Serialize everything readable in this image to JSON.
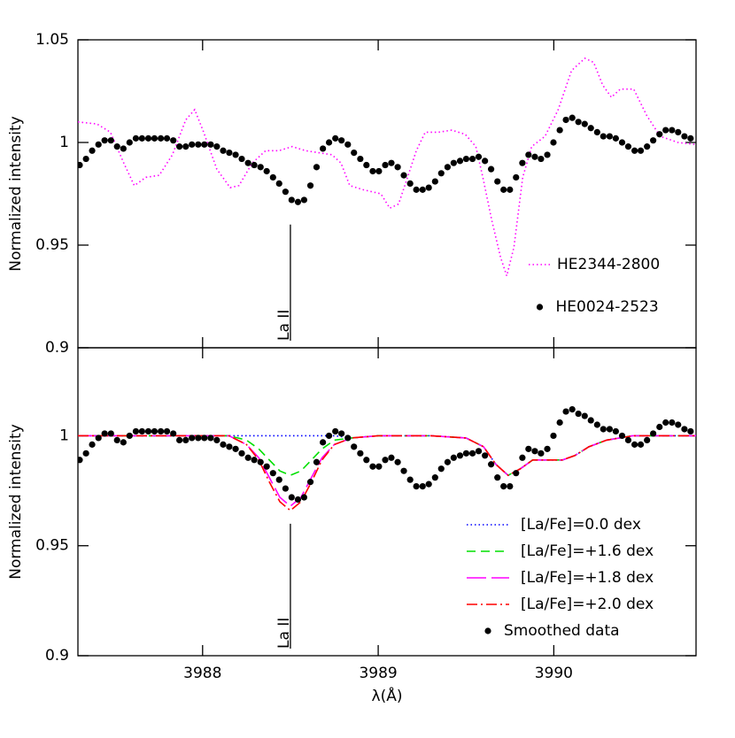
{
  "chart_data": [
    {
      "type": "line",
      "ylabel": "Normalized intensity",
      "xlim": [
        3987.29,
        3990.81
      ],
      "ylim": [
        0.9,
        1.05
      ],
      "xticks": [
        3988,
        3989,
        3990
      ],
      "xtick_labels_shown": false,
      "yticks": [
        0.9,
        0.95,
        1,
        1.05
      ],
      "grid": false,
      "legend": "lower right",
      "series": [
        {
          "name": "HE2344-2800",
          "color": "#ff00ff",
          "style": "dotted",
          "x": [
            3987.29,
            3987.399,
            3987.475,
            3987.551,
            3987.611,
            3987.677,
            3987.753,
            3987.828,
            3987.904,
            3987.955,
            3988.006,
            3988.081,
            3988.157,
            3988.207,
            3988.283,
            3988.359,
            3988.435,
            3988.51,
            3988.586,
            3988.662,
            3988.737,
            3988.788,
            3988.838,
            3988.914,
            3989.015,
            3989.066,
            3989.116,
            3989.167,
            3989.217,
            3989.268,
            3989.343,
            3989.419,
            3989.495,
            3989.556,
            3989.596,
            3989.647,
            3989.697,
            3989.732,
            3989.773,
            3989.823,
            3989.874,
            3989.95,
            3990.025,
            3990.101,
            3990.177,
            3990.227,
            3990.278,
            3990.328,
            3990.379,
            3990.455,
            3990.53,
            3990.606,
            3990.707,
            3990.81
          ],
          "values": [
            1.01,
            1.009,
            1.005,
            0.99,
            0.979,
            0.983,
            0.984,
            0.994,
            1.011,
            1.016,
            1.005,
            0.987,
            0.978,
            0.979,
            0.99,
            0.996,
            0.996,
            0.998,
            0.996,
            0.995,
            0.994,
            0.99,
            0.979,
            0.977,
            0.975,
            0.968,
            0.97,
            0.983,
            0.996,
            1.005,
            1.005,
            1.006,
            1.004,
            0.998,
            0.983,
            0.962,
            0.944,
            0.935,
            0.949,
            0.983,
            0.998,
            1.003,
            1.016,
            1.035,
            1.041,
            1.039,
            1.028,
            1.022,
            1.026,
            1.026,
            1.013,
            1.003,
            1.0,
            0.999
          ]
        },
        {
          "name": "HE0024-2523",
          "color": "#000000",
          "style": "dots",
          "x": [
            3987.3,
            3987.336,
            3987.371,
            3987.407,
            3987.442,
            3987.478,
            3987.513,
            3987.549,
            3987.584,
            3987.62,
            3987.655,
            3987.691,
            3987.726,
            3987.762,
            3987.797,
            3987.833,
            3987.868,
            3987.904,
            3987.939,
            3987.975,
            3988.01,
            3988.046,
            3988.081,
            3988.117,
            3988.152,
            3988.188,
            3988.223,
            3988.259,
            3988.294,
            3988.33,
            3988.365,
            3988.401,
            3988.436,
            3988.472,
            3988.507,
            3988.543,
            3988.578,
            3988.614,
            3988.649,
            3988.685,
            3988.72,
            3988.756,
            3988.791,
            3988.827,
            3988.862,
            3988.898,
            3988.933,
            3988.969,
            3989.004,
            3989.04,
            3989.075,
            3989.111,
            3989.146,
            3989.182,
            3989.217,
            3989.253,
            3989.288,
            3989.324,
            3989.359,
            3989.395,
            3989.43,
            3989.466,
            3989.501,
            3989.537,
            3989.572,
            3989.608,
            3989.643,
            3989.679,
            3989.714,
            3989.75,
            3989.785,
            3989.821,
            3989.856,
            3989.892,
            3989.927,
            3989.963,
            3989.998,
            3990.034,
            3990.069,
            3990.105,
            3990.14,
            3990.176,
            3990.211,
            3990.247,
            3990.282,
            3990.318,
            3990.353,
            3990.389,
            3990.424,
            3990.46,
            3990.495,
            3990.531,
            3990.566,
            3990.602,
            3990.637,
            3990.673,
            3990.708,
            3990.744,
            3990.779
          ],
          "values": [
            0.989,
            0.992,
            0.996,
            0.999,
            1.001,
            1.001,
            0.998,
            0.997,
            1.0,
            1.002,
            1.002,
            1.002,
            1.002,
            1.002,
            1.002,
            1.001,
            0.998,
            0.998,
            0.999,
            0.999,
            0.999,
            0.999,
            0.998,
            0.996,
            0.995,
            0.994,
            0.992,
            0.99,
            0.989,
            0.988,
            0.986,
            0.983,
            0.98,
            0.976,
            0.972,
            0.971,
            0.972,
            0.979,
            0.988,
            0.997,
            1.0,
            1.002,
            1.001,
            0.999,
            0.995,
            0.992,
            0.989,
            0.986,
            0.986,
            0.989,
            0.99,
            0.988,
            0.984,
            0.98,
            0.977,
            0.977,
            0.978,
            0.981,
            0.985,
            0.988,
            0.99,
            0.991,
            0.992,
            0.992,
            0.993,
            0.991,
            0.987,
            0.981,
            0.977,
            0.977,
            0.983,
            0.99,
            0.994,
            0.993,
            0.992,
            0.994,
            1.0,
            1.006,
            1.011,
            1.012,
            1.01,
            1.009,
            1.007,
            1.005,
            1.003,
            1.003,
            1.002,
            1.0,
            0.998,
            0.996,
            0.996,
            0.998,
            1.001,
            1.004,
            1.006,
            1.006,
            1.005,
            1.003,
            1.002
          ]
        }
      ],
      "annotations": [
        {
          "text": "La II",
          "x": 3988.5,
          "y": 0.96
        }
      ]
    },
    {
      "type": "line",
      "ylabel": "Normalized intensity",
      "xlabel": "λ(Å)",
      "xlim": [
        3987.29,
        3990.81
      ],
      "ylim": [
        0.9,
        1.04
      ],
      "xticks": [
        3988,
        3989,
        3990
      ],
      "xtick_labels_shown": true,
      "yticks": [
        0.9,
        0.95,
        1
      ],
      "grid": false,
      "legend": "lower right",
      "series": [
        {
          "name": "[La/Fe]=0.0 dex",
          "color": "#0000ff",
          "style": "dotted",
          "x": [
            3987.29,
            3987.8,
            3988.0,
            3988.15,
            3988.25,
            3988.32,
            3988.38,
            3988.44,
            3988.5,
            3988.56,
            3988.62,
            3988.68,
            3988.75,
            3988.85,
            3989.0,
            3989.3,
            3989.5,
            3989.6,
            3989.67,
            3989.74,
            3989.81,
            3989.88,
            3989.95,
            3990.05,
            3990.12,
            3990.2,
            3990.3,
            3990.45,
            3990.81
          ],
          "values": [
            1.0,
            1.0,
            1.0,
            1.0,
            1.0,
            1.0,
            1.0,
            1.0,
            1.0,
            1.0,
            1.0,
            1.0,
            1.0,
            0.999,
            1.0,
            1.0,
            0.999,
            0.995,
            0.987,
            0.982,
            0.985,
            0.989,
            0.989,
            0.989,
            0.991,
            0.995,
            0.998,
            1.0,
            1.0
          ]
        },
        {
          "name": "[La/Fe]=+1.6 dex",
          "color": "#00e000",
          "style": "dashed",
          "x": [
            3987.29,
            3987.8,
            3988.0,
            3988.15,
            3988.25,
            3988.32,
            3988.38,
            3988.44,
            3988.5,
            3988.56,
            3988.62,
            3988.68,
            3988.75,
            3988.85,
            3989.0,
            3989.3,
            3989.5,
            3989.6,
            3989.67,
            3989.74,
            3989.81,
            3989.88,
            3989.95,
            3990.05,
            3990.12,
            3990.2,
            3990.3,
            3990.45,
            3990.81
          ],
          "values": [
            1.0,
            1.0,
            1.0,
            1.0,
            0.998,
            0.994,
            0.989,
            0.984,
            0.982,
            0.984,
            0.989,
            0.994,
            0.998,
            0.999,
            1.0,
            1.0,
            0.999,
            0.995,
            0.987,
            0.982,
            0.985,
            0.989,
            0.989,
            0.989,
            0.991,
            0.995,
            0.998,
            1.0,
            1.0
          ]
        },
        {
          "name": "[La/Fe]=+1.8 dex",
          "color": "#ff00ff",
          "style": "longdash",
          "x": [
            3987.29,
            3987.8,
            3988.0,
            3988.15,
            3988.25,
            3988.32,
            3988.38,
            3988.44,
            3988.5,
            3988.56,
            3988.62,
            3988.68,
            3988.75,
            3988.85,
            3989.0,
            3989.3,
            3989.5,
            3989.6,
            3989.67,
            3989.74,
            3989.81,
            3989.88,
            3989.95,
            3990.05,
            3990.12,
            3990.2,
            3990.3,
            3990.45,
            3990.81
          ],
          "values": [
            1.0,
            1.0,
            1.0,
            1.0,
            0.996,
            0.99,
            0.981,
            0.972,
            0.968,
            0.972,
            0.981,
            0.99,
            0.996,
            0.999,
            1.0,
            1.0,
            0.999,
            0.995,
            0.987,
            0.982,
            0.985,
            0.989,
            0.989,
            0.989,
            0.991,
            0.995,
            0.998,
            1.0,
            1.0
          ]
        },
        {
          "name": "[La/Fe]=+2.0 dex",
          "color": "#ff0000",
          "style": "dashdot",
          "x": [
            3987.29,
            3987.8,
            3988.0,
            3988.15,
            3988.25,
            3988.32,
            3988.38,
            3988.44,
            3988.5,
            3988.56,
            3988.62,
            3988.68,
            3988.75,
            3988.85,
            3989.0,
            3989.3,
            3989.5,
            3989.6,
            3989.67,
            3989.74,
            3989.81,
            3989.88,
            3989.95,
            3990.05,
            3990.12,
            3990.2,
            3990.3,
            3990.45,
            3990.81
          ],
          "values": [
            1.0,
            1.0,
            1.0,
            1.0,
            0.996,
            0.989,
            0.979,
            0.97,
            0.966,
            0.97,
            0.979,
            0.989,
            0.996,
            0.999,
            1.0,
            1.0,
            0.999,
            0.995,
            0.987,
            0.982,
            0.985,
            0.989,
            0.989,
            0.989,
            0.991,
            0.995,
            0.998,
            1.0,
            1.0
          ]
        },
        {
          "name": "Smoothed data",
          "color": "#000000",
          "style": "dots",
          "x": [
            3987.3,
            3987.336,
            3987.371,
            3987.407,
            3987.442,
            3987.478,
            3987.513,
            3987.549,
            3987.584,
            3987.62,
            3987.655,
            3987.691,
            3987.726,
            3987.762,
            3987.797,
            3987.833,
            3987.868,
            3987.904,
            3987.939,
            3987.975,
            3988.01,
            3988.046,
            3988.081,
            3988.117,
            3988.152,
            3988.188,
            3988.223,
            3988.259,
            3988.294,
            3988.33,
            3988.365,
            3988.401,
            3988.436,
            3988.472,
            3988.507,
            3988.543,
            3988.578,
            3988.614,
            3988.649,
            3988.685,
            3988.72,
            3988.756,
            3988.791,
            3988.827,
            3988.862,
            3988.898,
            3988.933,
            3988.969,
            3989.004,
            3989.04,
            3989.075,
            3989.111,
            3989.146,
            3989.182,
            3989.217,
            3989.253,
            3989.288,
            3989.324,
            3989.359,
            3989.395,
            3989.43,
            3989.466,
            3989.501,
            3989.537,
            3989.572,
            3989.608,
            3989.643,
            3989.679,
            3989.714,
            3989.75,
            3989.785,
            3989.821,
            3989.856,
            3989.892,
            3989.927,
            3989.963,
            3989.998,
            3990.034,
            3990.069,
            3990.105,
            3990.14,
            3990.176,
            3990.211,
            3990.247,
            3990.282,
            3990.318,
            3990.353,
            3990.389,
            3990.424,
            3990.46,
            3990.495,
            3990.531,
            3990.566,
            3990.602,
            3990.637,
            3990.673,
            3990.708,
            3990.744,
            3990.779
          ],
          "values": [
            0.989,
            0.992,
            0.996,
            0.999,
            1.001,
            1.001,
            0.998,
            0.997,
            1.0,
            1.002,
            1.002,
            1.002,
            1.002,
            1.002,
            1.002,
            1.001,
            0.998,
            0.998,
            0.999,
            0.999,
            0.999,
            0.999,
            0.998,
            0.996,
            0.995,
            0.994,
            0.992,
            0.99,
            0.989,
            0.988,
            0.986,
            0.983,
            0.98,
            0.976,
            0.972,
            0.971,
            0.972,
            0.979,
            0.988,
            0.997,
            1.0,
            1.002,
            1.001,
            0.999,
            0.995,
            0.992,
            0.989,
            0.986,
            0.986,
            0.989,
            0.99,
            0.988,
            0.984,
            0.98,
            0.977,
            0.977,
            0.978,
            0.981,
            0.985,
            0.988,
            0.99,
            0.991,
            0.992,
            0.992,
            0.993,
            0.991,
            0.987,
            0.981,
            0.977,
            0.977,
            0.983,
            0.99,
            0.994,
            0.993,
            0.992,
            0.994,
            1.0,
            1.006,
            1.011,
            1.012,
            1.01,
            1.009,
            1.007,
            1.005,
            1.003,
            1.003,
            1.002,
            1.0,
            0.998,
            0.996,
            0.996,
            0.998,
            1.001,
            1.004,
            1.006,
            1.006,
            1.005,
            1.003,
            1.002
          ]
        }
      ],
      "annotations": [
        {
          "text": "La II",
          "x": 3988.5,
          "y": 0.96
        }
      ]
    }
  ]
}
